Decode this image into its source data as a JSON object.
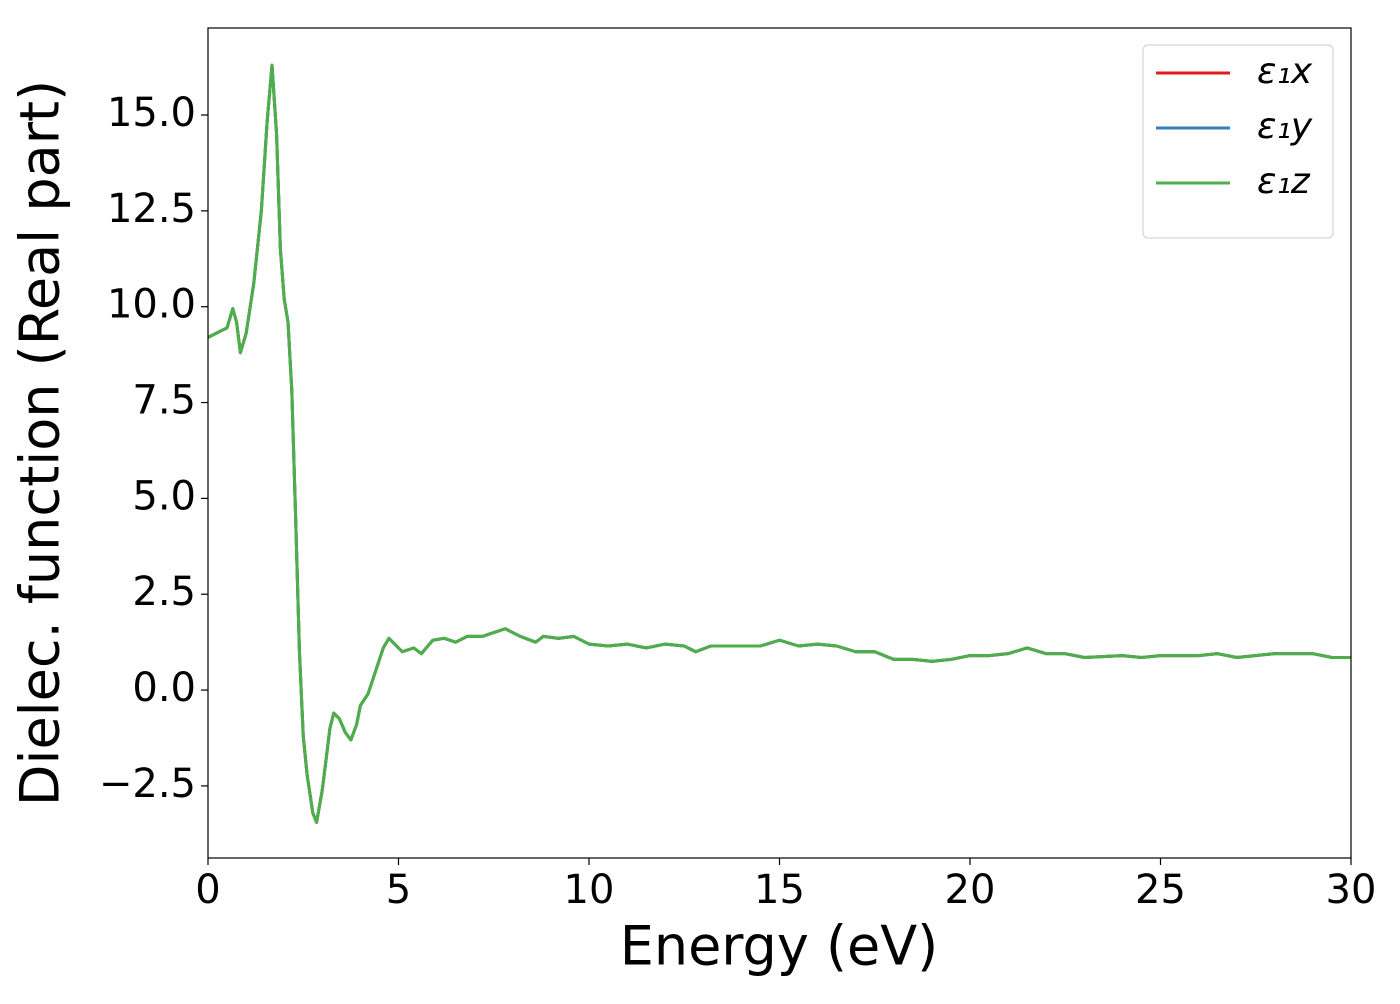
{
  "chart_data": {
    "type": "line",
    "xlabel": "Energy (eV)",
    "ylabel": "Dielec. function (Real part)",
    "x": [
      0,
      0.3,
      0.5,
      0.65,
      0.75,
      0.85,
      1.0,
      1.2,
      1.4,
      1.55,
      1.68,
      1.8,
      1.9,
      2.0,
      2.1,
      2.2,
      2.3,
      2.4,
      2.5,
      2.6,
      2.75,
      2.85,
      3.0,
      3.2,
      3.3,
      3.45,
      3.6,
      3.75,
      3.9,
      4.0,
      4.2,
      4.4,
      4.6,
      4.75,
      4.9,
      5.1,
      5.4,
      5.6,
      5.9,
      6.2,
      6.5,
      6.8,
      7.2,
      7.5,
      7.8,
      8.2,
      8.6,
      8.8,
      9.2,
      9.6,
      10.0,
      10.5,
      11.0,
      11.5,
      12.0,
      12.5,
      12.8,
      13.2,
      14.0,
      14.5,
      15.0,
      15.5,
      16.0,
      16.5,
      17.0,
      17.5,
      18.0,
      18.5,
      19.0,
      19.5,
      20.0,
      20.5,
      21.0,
      21.5,
      22.0,
      22.5,
      23.0,
      24.0,
      24.5,
      25.0,
      26.0,
      26.5,
      27.0,
      28.0,
      29.0,
      29.5,
      30.0
    ],
    "series": [
      {
        "name": "ε₁x",
        "color": "#e41a1c",
        "values": [
          9.2,
          9.35,
          9.45,
          9.95,
          9.6,
          8.8,
          9.3,
          10.6,
          12.5,
          14.8,
          16.3,
          14.5,
          11.5,
          10.2,
          9.6,
          7.8,
          4.5,
          1.0,
          -1.2,
          -2.2,
          -3.2,
          -3.45,
          -2.6,
          -1.0,
          -0.6,
          -0.75,
          -1.1,
          -1.3,
          -0.9,
          -0.4,
          -0.1,
          0.5,
          1.1,
          1.35,
          1.2,
          1.0,
          1.1,
          0.95,
          1.3,
          1.35,
          1.25,
          1.4,
          1.4,
          1.5,
          1.6,
          1.4,
          1.25,
          1.4,
          1.35,
          1.4,
          1.2,
          1.15,
          1.2,
          1.1,
          1.2,
          1.15,
          1.0,
          1.15,
          1.15,
          1.15,
          1.3,
          1.15,
          1.2,
          1.15,
          1.0,
          1.0,
          0.8,
          0.8,
          0.75,
          0.8,
          0.9,
          0.9,
          0.95,
          1.1,
          0.95,
          0.95,
          0.85,
          0.9,
          0.85,
          0.9,
          0.9,
          0.95,
          0.85,
          0.95,
          0.95,
          0.85,
          0.85
        ]
      },
      {
        "name": "ε₁y",
        "color": "#377eb8",
        "values": [
          9.2,
          9.35,
          9.45,
          9.95,
          9.6,
          8.8,
          9.3,
          10.6,
          12.5,
          14.8,
          16.3,
          14.5,
          11.5,
          10.2,
          9.6,
          7.8,
          4.5,
          1.0,
          -1.2,
          -2.2,
          -3.2,
          -3.45,
          -2.6,
          -1.0,
          -0.6,
          -0.75,
          -1.1,
          -1.3,
          -0.9,
          -0.4,
          -0.1,
          0.5,
          1.1,
          1.35,
          1.2,
          1.0,
          1.1,
          0.95,
          1.3,
          1.35,
          1.25,
          1.4,
          1.4,
          1.5,
          1.6,
          1.4,
          1.25,
          1.4,
          1.35,
          1.4,
          1.2,
          1.15,
          1.2,
          1.1,
          1.2,
          1.15,
          1.0,
          1.15,
          1.15,
          1.15,
          1.3,
          1.15,
          1.2,
          1.15,
          1.0,
          1.0,
          0.8,
          0.8,
          0.75,
          0.8,
          0.9,
          0.9,
          0.95,
          1.1,
          0.95,
          0.95,
          0.85,
          0.9,
          0.85,
          0.9,
          0.9,
          0.95,
          0.85,
          0.95,
          0.95,
          0.85,
          0.85
        ]
      },
      {
        "name": "ε₁z",
        "color": "#4daf4a",
        "values": [
          9.2,
          9.35,
          9.45,
          9.95,
          9.6,
          8.8,
          9.3,
          10.6,
          12.5,
          14.8,
          16.3,
          14.5,
          11.5,
          10.2,
          9.6,
          7.8,
          4.5,
          1.0,
          -1.2,
          -2.2,
          -3.2,
          -3.45,
          -2.6,
          -1.0,
          -0.6,
          -0.75,
          -1.1,
          -1.3,
          -0.9,
          -0.4,
          -0.1,
          0.5,
          1.1,
          1.35,
          1.2,
          1.0,
          1.1,
          0.95,
          1.3,
          1.35,
          1.25,
          1.4,
          1.4,
          1.5,
          1.6,
          1.4,
          1.25,
          1.4,
          1.35,
          1.4,
          1.2,
          1.15,
          1.2,
          1.1,
          1.2,
          1.15,
          1.0,
          1.15,
          1.15,
          1.15,
          1.3,
          1.15,
          1.2,
          1.15,
          1.0,
          1.0,
          0.8,
          0.8,
          0.75,
          0.8,
          0.9,
          0.9,
          0.95,
          1.1,
          0.95,
          0.95,
          0.85,
          0.9,
          0.85,
          0.9,
          0.9,
          0.95,
          0.85,
          0.95,
          0.95,
          0.85,
          0.85
        ]
      }
    ],
    "xlim": [
      0,
      30
    ],
    "xticks": [
      0,
      5,
      10,
      15,
      20,
      25,
      30
    ],
    "ylim": [
      -4.38,
      17.27
    ],
    "yticks": [
      {
        "value": -2.5,
        "label": "−2.5"
      },
      {
        "value": 0,
        "label": "0.0"
      },
      {
        "value": 2.5,
        "label": "2.5"
      },
      {
        "value": 5,
        "label": "5.0"
      },
      {
        "value": 7.5,
        "label": "7.5"
      },
      {
        "value": 10,
        "label": "10.0"
      },
      {
        "value": 12.5,
        "label": "12.5"
      },
      {
        "value": 15,
        "label": "15.0"
      }
    ],
    "grid": false,
    "legend": "upper right"
  }
}
